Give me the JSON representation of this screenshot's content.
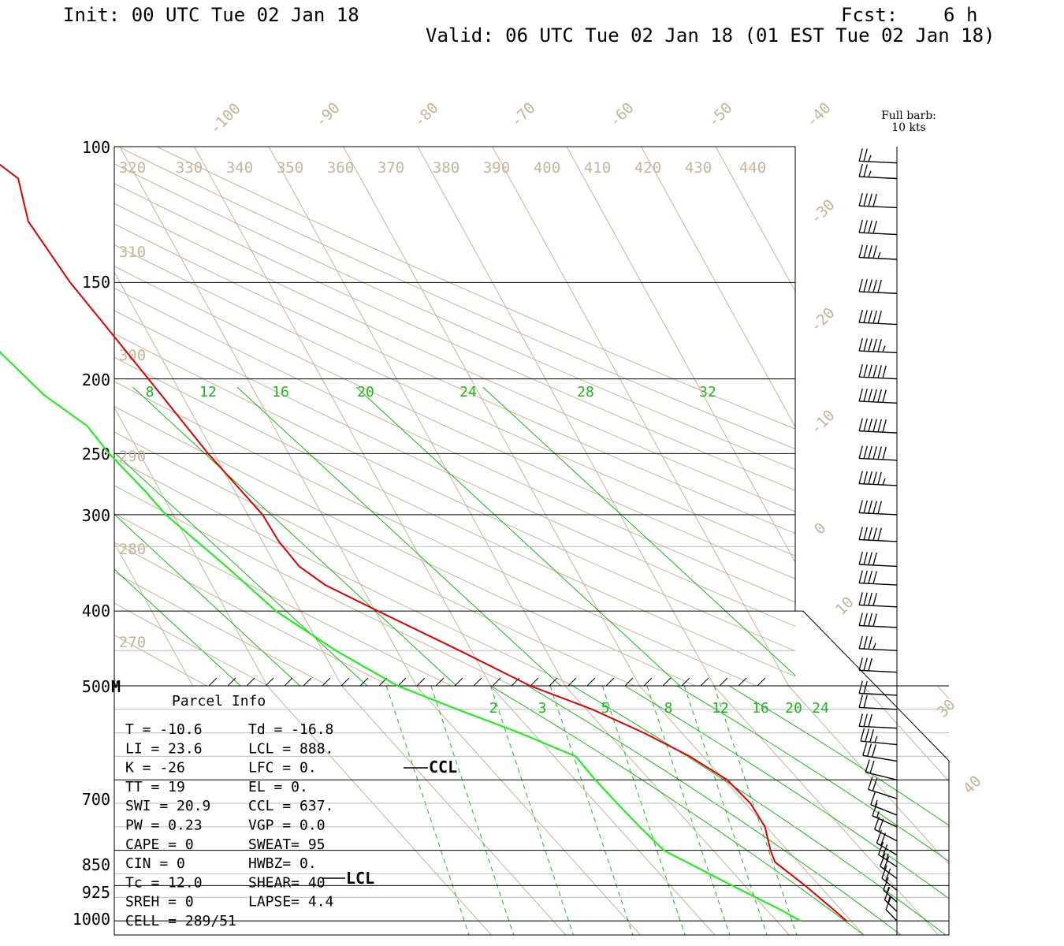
{
  "header": {
    "init": "Init: 00 UTC Tue 02 Jan 18",
    "fcst": "Fcst:    6 h",
    "valid": "Valid: 06 UTC Tue 02 Jan 18 (01 EST Tue 02 Jan 18)"
  },
  "colors": {
    "temperature": "#e00000",
    "dewpoint": "#22ee22",
    "mixing_ratio": "#1db61d",
    "isotherm": "#c8b49a",
    "frame": "#000000"
  },
  "chart_data": {
    "type": "skew-t",
    "pressure_axis": {
      "ticks": [
        100,
        150,
        200,
        250,
        300,
        400,
        500,
        700,
        850,
        925,
        1000
      ],
      "labels": [
        "100",
        "150",
        "200",
        "250",
        "300",
        "400",
        "500",
        "700",
        "850",
        "925",
        "1000"
      ],
      "marker_500": "M"
    },
    "isotherm_labels": [
      "-100",
      "-90",
      "-80",
      "-70",
      "-60",
      "-50",
      "-40",
      "-30",
      "-20",
      "-10",
      "0",
      "10",
      "30",
      "40"
    ],
    "theta_labels": [
      "320",
      "330",
      "340",
      "350",
      "360",
      "370",
      "380",
      "390",
      "400",
      "410",
      "420",
      "430",
      "440",
      "310",
      "300",
      "290",
      "280",
      "270"
    ],
    "upper_mixing_ratio_labels": [
      "8",
      "12",
      "16",
      "20",
      "24",
      "28",
      "32"
    ],
    "lower_mixing_ratio_labels": [
      "2",
      "3",
      "5",
      "8",
      "12",
      "16",
      "20",
      "24"
    ],
    "temperature_profile": [
      {
        "p": 1000,
        "t": -10.6
      },
      {
        "p": 975,
        "t": -11.0
      },
      {
        "p": 925,
        "t": -11.9
      },
      {
        "p": 875,
        "t": -13.1
      },
      {
        "p": 850,
        "t": -12.3
      },
      {
        "p": 800,
        "t": -10.2
      },
      {
        "p": 750,
        "t": -9.3
      },
      {
        "p": 700,
        "t": -9.6
      },
      {
        "p": 650,
        "t": -11.8
      },
      {
        "p": 600,
        "t": -15.1
      },
      {
        "p": 550,
        "t": -19.2
      },
      {
        "p": 500,
        "t": -24.7
      },
      {
        "p": 450,
        "t": -31.6
      },
      {
        "p": 400,
        "t": -39.6
      },
      {
        "p": 370,
        "t": -44.8
      },
      {
        "p": 350,
        "t": -46.9
      },
      {
        "p": 325,
        "t": -47.8
      },
      {
        "p": 300,
        "t": -48.0
      },
      {
        "p": 250,
        "t": -50.8
      },
      {
        "p": 200,
        "t": -53.3
      },
      {
        "p": 170,
        "t": -55.2
      },
      {
        "p": 150,
        "t": -56.7
      },
      {
        "p": 125,
        "t": -57.8
      },
      {
        "p": 110,
        "t": -56.0
      },
      {
        "p": 105,
        "t": -57.6
      }
    ],
    "dewpoint_profile": [
      {
        "p": 1000,
        "t": -16.8
      },
      {
        "p": 975,
        "t": -18.2
      },
      {
        "p": 925,
        "t": -21.7
      },
      {
        "p": 850,
        "t": -26.6
      },
      {
        "p": 800,
        "t": -27.0
      },
      {
        "p": 750,
        "t": -27.2
      },
      {
        "p": 700,
        "t": -27.3
      },
      {
        "p": 650,
        "t": -27.1
      },
      {
        "p": 600,
        "t": -31.8
      },
      {
        "p": 550,
        "t": -37.3
      },
      {
        "p": 500,
        "t": -42.5
      },
      {
        "p": 450,
        "t": -48.2
      },
      {
        "p": 400,
        "t": -53.3
      },
      {
        "p": 350,
        "t": -56.7
      },
      {
        "p": 300,
        "t": -61.0
      },
      {
        "p": 280,
        "t": -62.0
      },
      {
        "p": 250,
        "t": -64.1
      },
      {
        "p": 230,
        "t": -65.0
      },
      {
        "p": 210,
        "t": -68.5
      },
      {
        "p": 180,
        "t": -71.8
      },
      {
        "p": 170,
        "t": -73.8
      },
      {
        "p": 160,
        "t": -76.0
      },
      {
        "p": 150,
        "t": -75.9
      },
      {
        "p": 130,
        "t": -76.8
      },
      {
        "p": 115,
        "t": -76.8
      },
      {
        "p": 105,
        "t": -78.0
      }
    ],
    "wind_barbs": [
      {
        "p": 105,
        "kts": 25
      },
      {
        "p": 110,
        "kts": 25
      },
      {
        "p": 120,
        "kts": 40
      },
      {
        "p": 130,
        "kts": 40
      },
      {
        "p": 140,
        "kts": 45
      },
      {
        "p": 155,
        "kts": 50
      },
      {
        "p": 170,
        "kts": 50
      },
      {
        "p": 185,
        "kts": 55
      },
      {
        "p": 200,
        "kts": 60
      },
      {
        "p": 215,
        "kts": 60
      },
      {
        "p": 235,
        "kts": 60
      },
      {
        "p": 255,
        "kts": 60
      },
      {
        "p": 275,
        "kts": 55
      },
      {
        "p": 300,
        "kts": 50
      },
      {
        "p": 325,
        "kts": 50
      },
      {
        "p": 350,
        "kts": 40
      },
      {
        "p": 370,
        "kts": 40
      },
      {
        "p": 395,
        "kts": 40
      },
      {
        "p": 420,
        "kts": 40
      },
      {
        "p": 450,
        "kts": 35
      },
      {
        "p": 480,
        "kts": 30
      },
      {
        "p": 520,
        "kts": 20
      },
      {
        "p": 550,
        "kts": 20
      },
      {
        "p": 590,
        "kts": 30
      },
      {
        "p": 625,
        "kts": 35
      },
      {
        "p": 660,
        "kts": 30
      },
      {
        "p": 700,
        "kts": 20
      },
      {
        "p": 740,
        "kts": 20
      },
      {
        "p": 775,
        "kts": 15
      },
      {
        "p": 800,
        "kts": 15
      },
      {
        "p": 830,
        "kts": 20
      },
      {
        "p": 860,
        "kts": 20
      },
      {
        "p": 885,
        "kts": 25
      },
      {
        "p": 910,
        "kts": 20
      },
      {
        "p": 935,
        "kts": 20
      },
      {
        "p": 960,
        "kts": 15
      },
      {
        "p": 980,
        "kts": 15
      },
      {
        "p": 1000,
        "kts": 10
      }
    ],
    "barb_legend": [
      "Full barb:",
      "10 kts"
    ],
    "markers": {
      "ccl": "CCL",
      "lcl": "LCL"
    }
  },
  "parcel_info": {
    "title": "Parcel Info",
    "rows": [
      [
        "T  =    -10.6",
        "Td = -16.8"
      ],
      [
        "LI =     23.6",
        "LCL =  888."
      ],
      [
        "K  =      -26",
        "LFC =    0."
      ],
      [
        "TT =       19",
        "EL  =    0."
      ],
      [
        "SWI =    20.9",
        "CCL =  637."
      ],
      [
        "PW  =    0.23",
        "VGP =   0.0"
      ],
      [
        "CAPE =      0",
        "SWEAT=   95"
      ],
      [
        "CIN  =      0",
        "HWBZ=    0."
      ],
      [
        "Tc =     12.0",
        "SHEAR=   40"
      ],
      [
        "SREH =      0",
        "LAPSE=  4.4"
      ],
      [
        "CELL = 289/51",
        ""
      ]
    ]
  }
}
